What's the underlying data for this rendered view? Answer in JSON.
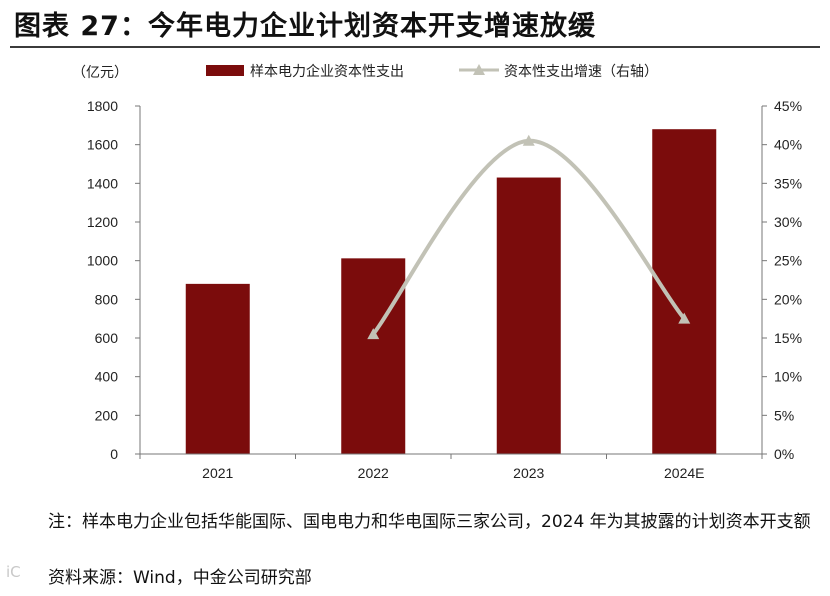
{
  "title": "图表 27：今年电力企业计划资本开支增速放缓",
  "chart_data": {
    "type": "bar",
    "categories": [
      "2021",
      "2022",
      "2023",
      "2024E"
    ],
    "left_axis": {
      "unit": "（亿元）",
      "ylim": [
        0,
        1800
      ],
      "ticks": [
        0,
        200,
        400,
        600,
        800,
        1000,
        1200,
        1400,
        1600,
        1800
      ]
    },
    "right_axis": {
      "ylim": [
        0,
        45
      ],
      "ticks": [
        "0%",
        "5%",
        "10%",
        "15%",
        "20%",
        "25%",
        "30%",
        "35%",
        "40%",
        "45%"
      ]
    },
    "series": [
      {
        "name": "样本电力企业资本性支出",
        "type": "bar",
        "axis": "left",
        "color": "#7b0c0c",
        "values": [
          880,
          1012,
          1430,
          1680
        ]
      },
      {
        "name": "资本性支出增速（右轴）",
        "type": "line",
        "axis": "right",
        "color": "#c2c2b6",
        "values": [
          null,
          15.5,
          40.5,
          17.5
        ]
      }
    ],
    "legend_position": "top",
    "grid": false
  },
  "notes": {
    "line1": "注：样本电力企业包括华能国际、国电电力和华电国际三家公司，2024 年为其披露的计划资本开支额",
    "line2": "资料来源：Wind，中金公司研究部"
  },
  "watermark": "iC"
}
